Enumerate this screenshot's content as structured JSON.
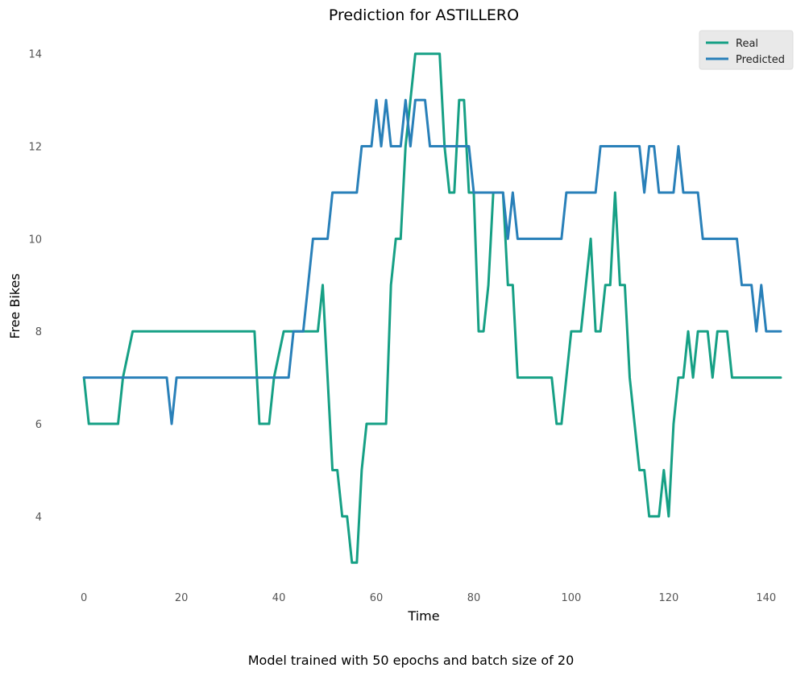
{
  "chart_data": {
    "type": "line",
    "title": "Prediction for ASTILLERO",
    "xlabel": "Time",
    "ylabel": "Free Bikes",
    "caption": "Model trained with 50 epochs and batch size of 20",
    "xlim": [
      -4,
      144
    ],
    "ylim": [
      2.5,
      14.5
    ],
    "xticks": [
      0,
      20,
      40,
      60,
      80,
      100,
      120,
      140
    ],
    "yticks": [
      4,
      6,
      8,
      10,
      12,
      14
    ],
    "grid": false,
    "legend_position": "top-right",
    "series": [
      {
        "name": "Real",
        "color": "#16a085",
        "points": [
          [
            0,
            7
          ],
          [
            1,
            6
          ],
          [
            7,
            6
          ],
          [
            8,
            7
          ],
          [
            10,
            8
          ],
          [
            35,
            8
          ],
          [
            36,
            6
          ],
          [
            38,
            6
          ],
          [
            39,
            7
          ],
          [
            41,
            8
          ],
          [
            48,
            8
          ],
          [
            49,
            9
          ],
          [
            51,
            5
          ],
          [
            52,
            5
          ],
          [
            53,
            4
          ],
          [
            54,
            4
          ],
          [
            55,
            3
          ],
          [
            56,
            3
          ],
          [
            57,
            5
          ],
          [
            58,
            6
          ],
          [
            62,
            6
          ],
          [
            63,
            9
          ],
          [
            64,
            10
          ],
          [
            65,
            10
          ],
          [
            66,
            12
          ],
          [
            67,
            13
          ],
          [
            68,
            14
          ],
          [
            73,
            14
          ],
          [
            74,
            12
          ],
          [
            75,
            11
          ],
          [
            76,
            11
          ],
          [
            77,
            13
          ],
          [
            78,
            13
          ],
          [
            79,
            11
          ],
          [
            80,
            11
          ],
          [
            81,
            8
          ],
          [
            82,
            8
          ],
          [
            83,
            9
          ],
          [
            84,
            11
          ],
          [
            86,
            11
          ],
          [
            87,
            9
          ],
          [
            88,
            9
          ],
          [
            89,
            7
          ],
          [
            96,
            7
          ],
          [
            97,
            6
          ],
          [
            98,
            6
          ],
          [
            99,
            7
          ],
          [
            100,
            8
          ],
          [
            102,
            8
          ],
          [
            103,
            9
          ],
          [
            104,
            10
          ],
          [
            105,
            8
          ],
          [
            106,
            8
          ],
          [
            107,
            9
          ],
          [
            108,
            9
          ],
          [
            109,
            11
          ],
          [
            110,
            9
          ],
          [
            111,
            9
          ],
          [
            112,
            7
          ],
          [
            113,
            6
          ],
          [
            114,
            5
          ],
          [
            115,
            5
          ],
          [
            116,
            4
          ],
          [
            118,
            4
          ],
          [
            119,
            5
          ],
          [
            120,
            4
          ],
          [
            121,
            6
          ],
          [
            122,
            7
          ],
          [
            123,
            7
          ],
          [
            124,
            8
          ],
          [
            125,
            7
          ],
          [
            126,
            8
          ],
          [
            128,
            8
          ],
          [
            129,
            7
          ],
          [
            130,
            8
          ],
          [
            132,
            8
          ],
          [
            133,
            7
          ],
          [
            143,
            7
          ]
        ]
      },
      {
        "name": "Predicted",
        "color": "#2980b9",
        "points": [
          [
            0,
            7
          ],
          [
            17,
            7
          ],
          [
            18,
            6
          ],
          [
            19,
            7
          ],
          [
            42,
            7
          ],
          [
            43,
            8
          ],
          [
            45,
            8
          ],
          [
            47,
            10
          ],
          [
            50,
            10
          ],
          [
            51,
            11
          ],
          [
            56,
            11
          ],
          [
            57,
            12
          ],
          [
            59,
            12
          ],
          [
            60,
            13
          ],
          [
            61,
            12
          ],
          [
            62,
            13
          ],
          [
            63,
            12
          ],
          [
            65,
            12
          ],
          [
            66,
            13
          ],
          [
            67,
            12
          ],
          [
            68,
            13
          ],
          [
            70,
            13
          ],
          [
            71,
            12
          ],
          [
            79,
            12
          ],
          [
            80,
            11
          ],
          [
            86,
            11
          ],
          [
            87,
            10
          ],
          [
            88,
            11
          ],
          [
            89,
            10
          ],
          [
            98,
            10
          ],
          [
            99,
            11
          ],
          [
            105,
            11
          ],
          [
            106,
            12
          ],
          [
            114,
            12
          ],
          [
            115,
            11
          ],
          [
            116,
            12
          ],
          [
            117,
            12
          ],
          [
            118,
            11
          ],
          [
            121,
            11
          ],
          [
            122,
            12
          ],
          [
            123,
            11
          ],
          [
            126,
            11
          ],
          [
            127,
            10
          ],
          [
            134,
            10
          ],
          [
            135,
            9
          ],
          [
            137,
            9
          ],
          [
            138,
            8
          ],
          [
            139,
            9
          ],
          [
            140,
            8
          ],
          [
            143,
            8
          ]
        ]
      }
    ]
  }
}
